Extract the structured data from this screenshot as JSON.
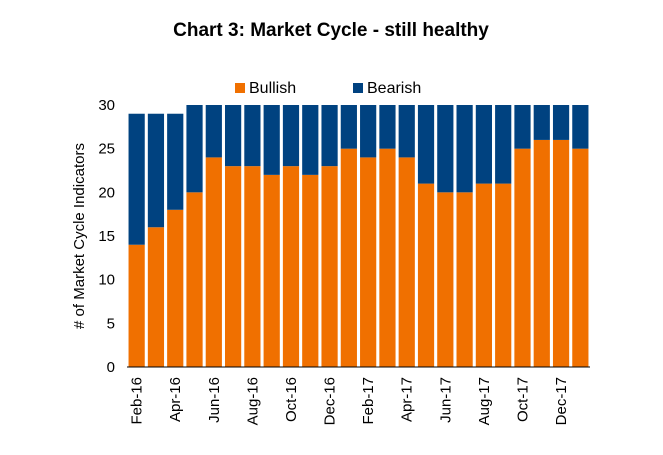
{
  "chart_data": {
    "type": "bar",
    "stacked": true,
    "title": "Chart 3: Market Cycle - still healthy",
    "ylabel": "# of Market Cycle Indicators",
    "xlabel": "",
    "ylim": [
      0,
      30
    ],
    "yticks": [
      0,
      5,
      10,
      15,
      20,
      25,
      30
    ],
    "grid": false,
    "legend_position": "top",
    "categories": [
      "Feb-16",
      "Mar-16",
      "Apr-16",
      "May-16",
      "Jun-16",
      "Jul-16",
      "Aug-16",
      "Sep-16",
      "Oct-16",
      "Nov-16",
      "Dec-16",
      "Jan-17",
      "Feb-17",
      "Mar-17",
      "Apr-17",
      "May-17",
      "Jun-17",
      "Jul-17",
      "Aug-17",
      "Sep-17",
      "Oct-17",
      "Nov-17",
      "Dec-17",
      "Jan-18"
    ],
    "xtick_labels": [
      "Feb-16",
      "Apr-16",
      "Jun-16",
      "Aug-16",
      "Oct-16",
      "Dec-16",
      "Feb-17",
      "Apr-17",
      "Jun-17",
      "Aug-17",
      "Oct-17",
      "Dec-17"
    ],
    "series": [
      {
        "name": "Bullish",
        "color": "#f07000",
        "values": [
          14,
          16,
          18,
          20,
          24,
          23,
          23,
          22,
          23,
          22,
          23,
          25,
          24,
          25,
          24,
          21,
          20,
          20,
          21,
          21,
          25,
          26,
          26,
          25
        ]
      },
      {
        "name": "Bearish",
        "color": "#004280",
        "values": [
          15,
          13,
          11,
          10,
          6,
          7,
          7,
          8,
          7,
          8,
          7,
          5,
          6,
          5,
          6,
          9,
          10,
          10,
          9,
          9,
          5,
          4,
          4,
          5
        ]
      }
    ]
  }
}
